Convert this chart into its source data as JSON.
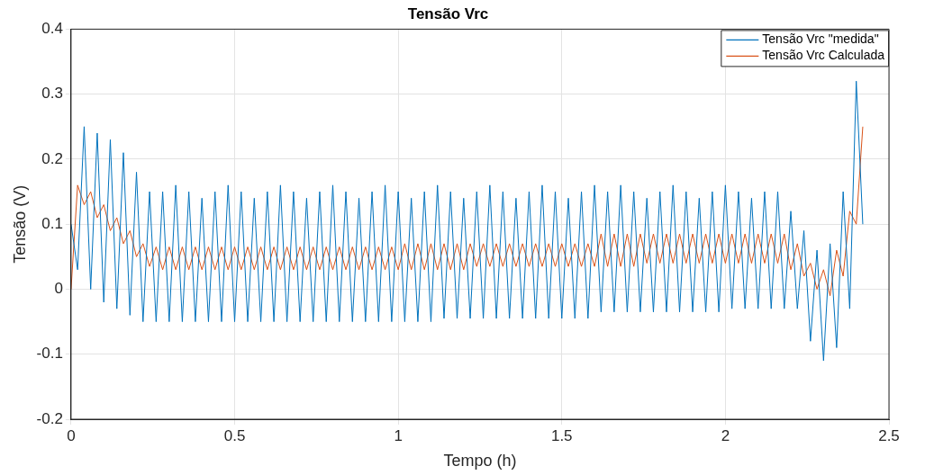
{
  "chart_data": {
    "type": "line",
    "title": "Tensão Vrc",
    "xlabel": "Tempo (h)",
    "ylabel": "Tensão (V)",
    "x": [
      0,
      0.02,
      0.04,
      0.06,
      0.08,
      0.1,
      0.12,
      0.14,
      0.16,
      0.18,
      0.2,
      0.22,
      0.24,
      0.26,
      0.28,
      0.3,
      0.32,
      0.34,
      0.36,
      0.38,
      0.4,
      0.42,
      0.44,
      0.46,
      0.48,
      0.5,
      0.52,
      0.54,
      0.56,
      0.58,
      0.6,
      0.62,
      0.64,
      0.66,
      0.68,
      0.7,
      0.72,
      0.74,
      0.76,
      0.78,
      0.8,
      0.82,
      0.84,
      0.86,
      0.88,
      0.9,
      0.92,
      0.94,
      0.96,
      0.98,
      1,
      1.02,
      1.04,
      1.06,
      1.08,
      1.1,
      1.12,
      1.14,
      1.16,
      1.18,
      1.2,
      1.22,
      1.24,
      1.26,
      1.28,
      1.3,
      1.32,
      1.34,
      1.36,
      1.38,
      1.4,
      1.42,
      1.44,
      1.46,
      1.48,
      1.5,
      1.52,
      1.54,
      1.56,
      1.58,
      1.6,
      1.62,
      1.64,
      1.66,
      1.68,
      1.7,
      1.72,
      1.74,
      1.76,
      1.78,
      1.8,
      1.82,
      1.84,
      1.86,
      1.88,
      1.9,
      1.92,
      1.94,
      1.96,
      1.98,
      2,
      2.02,
      2.04,
      2.06,
      2.08,
      2.1,
      2.12,
      2.14,
      2.16,
      2.18,
      2.2,
      2.22,
      2.24,
      2.26,
      2.28,
      2.3,
      2.32,
      2.34,
      2.36,
      2.38,
      2.4,
      2.42
    ],
    "series": [
      {
        "name": "Tensão Vrc \"medida\"",
        "color": "#0072bd",
        "values": [
          0.1,
          0.03,
          0.25,
          0.0,
          0.24,
          -0.02,
          0.23,
          -0.03,
          0.21,
          -0.04,
          0.18,
          -0.05,
          0.15,
          -0.05,
          0.15,
          -0.05,
          0.16,
          -0.05,
          0.15,
          -0.05,
          0.14,
          -0.05,
          0.15,
          -0.05,
          0.16,
          -0.05,
          0.15,
          -0.05,
          0.14,
          -0.05,
          0.15,
          -0.05,
          0.16,
          -0.05,
          0.15,
          -0.05,
          0.14,
          -0.05,
          0.15,
          -0.05,
          0.16,
          -0.05,
          0.15,
          -0.05,
          0.14,
          -0.05,
          0.15,
          -0.05,
          0.16,
          -0.05,
          0.15,
          -0.05,
          0.14,
          -0.05,
          0.15,
          -0.05,
          0.16,
          -0.045,
          0.15,
          -0.045,
          0.14,
          -0.045,
          0.15,
          -0.045,
          0.16,
          -0.045,
          0.15,
          -0.045,
          0.14,
          -0.045,
          0.15,
          -0.045,
          0.16,
          -0.045,
          0.15,
          -0.045,
          0.14,
          -0.045,
          0.15,
          -0.045,
          0.16,
          -0.035,
          0.15,
          -0.035,
          0.16,
          -0.035,
          0.15,
          -0.035,
          0.14,
          -0.035,
          0.15,
          -0.035,
          0.16,
          -0.035,
          0.15,
          -0.035,
          0.14,
          -0.035,
          0.15,
          -0.035,
          0.16,
          -0.03,
          0.15,
          -0.03,
          0.14,
          -0.03,
          0.15,
          -0.03,
          0.15,
          -0.03,
          0.12,
          -0.03,
          0.09,
          -0.08,
          0.06,
          -0.11,
          0.07,
          -0.09,
          0.15,
          -0.03,
          0.32,
          0.1
        ]
      },
      {
        "name": "Tensão Vrc Calculada",
        "color": "#d95319",
        "values": [
          0.0,
          0.16,
          0.13,
          0.15,
          0.11,
          0.13,
          0.09,
          0.11,
          0.07,
          0.09,
          0.05,
          0.07,
          0.035,
          0.065,
          0.03,
          0.065,
          0.03,
          0.065,
          0.03,
          0.065,
          0.03,
          0.065,
          0.03,
          0.065,
          0.03,
          0.065,
          0.03,
          0.065,
          0.03,
          0.065,
          0.03,
          0.065,
          0.03,
          0.065,
          0.03,
          0.065,
          0.03,
          0.065,
          0.03,
          0.065,
          0.03,
          0.065,
          0.03,
          0.065,
          0.03,
          0.065,
          0.03,
          0.065,
          0.03,
          0.065,
          0.03,
          0.07,
          0.03,
          0.07,
          0.03,
          0.07,
          0.03,
          0.07,
          0.03,
          0.07,
          0.03,
          0.07,
          0.035,
          0.07,
          0.035,
          0.07,
          0.035,
          0.07,
          0.035,
          0.07,
          0.035,
          0.07,
          0.035,
          0.07,
          0.035,
          0.07,
          0.035,
          0.07,
          0.035,
          0.07,
          0.035,
          0.085,
          0.035,
          0.085,
          0.035,
          0.085,
          0.035,
          0.085,
          0.04,
          0.085,
          0.04,
          0.085,
          0.04,
          0.085,
          0.04,
          0.085,
          0.04,
          0.085,
          0.04,
          0.085,
          0.04,
          0.085,
          0.04,
          0.085,
          0.04,
          0.085,
          0.04,
          0.085,
          0.04,
          0.085,
          0.03,
          0.07,
          0.02,
          0.04,
          0.0,
          0.03,
          -0.01,
          0.06,
          0.02,
          0.12,
          0.1,
          0.25
        ]
      }
    ],
    "xlim": [
      0,
      2.5
    ],
    "xticks": [
      0,
      0.5,
      1,
      1.5,
      2,
      2.5
    ],
    "ylim": [
      -0.2,
      0.4
    ],
    "yticks": [
      -0.2,
      -0.1,
      0,
      0.1,
      0.2,
      0.3,
      0.4
    ],
    "grid": true,
    "legend": "top right"
  }
}
